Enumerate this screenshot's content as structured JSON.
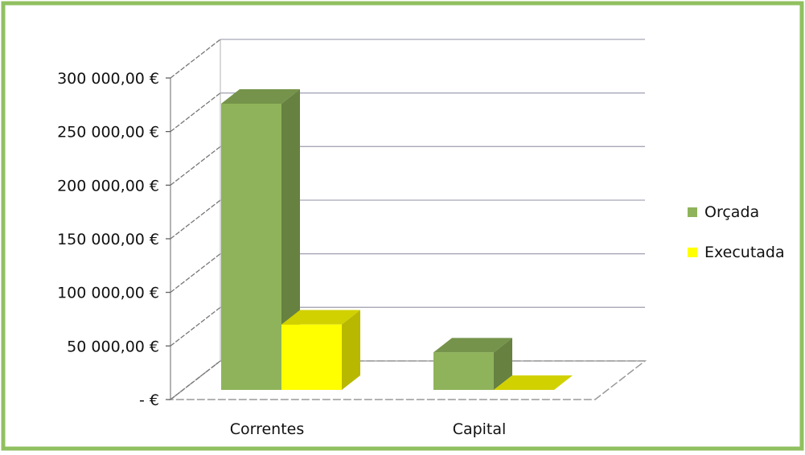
{
  "chart_data": {
    "type": "bar",
    "title": "",
    "xlabel": "",
    "ylabel": "",
    "categories": [
      "Correntes",
      "Capital"
    ],
    "series": [
      {
        "name": "Orçada",
        "values": [
          267000,
          35000
        ],
        "color": "#8fb35a"
      },
      {
        "name": "Executada",
        "values": [
          61000,
          0
        ],
        "color": "#ffff00"
      }
    ],
    "ylim": [
      0,
      300000
    ],
    "yticks": [
      0,
      50000,
      100000,
      150000,
      200000,
      250000,
      300000
    ],
    "ytick_labels": [
      "-   €",
      "50 000,00 €",
      "100 000,00 €",
      "150 000,00 €",
      "200 000,00 €",
      "250 000,00 €",
      "300 000,00 €"
    ],
    "grid": true,
    "legend_position": "right",
    "style": "3d-clustered-column",
    "frame_color": "#90c060"
  }
}
